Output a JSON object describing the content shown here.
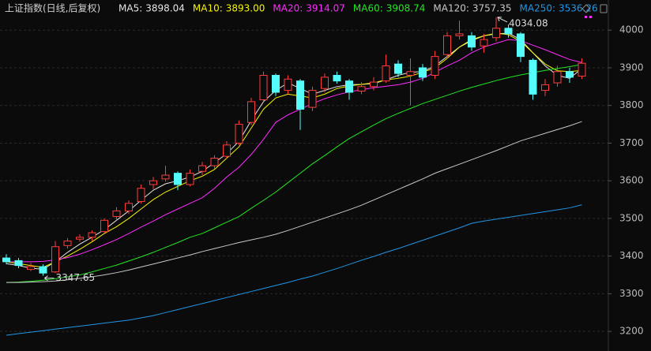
{
  "chart_data": {
    "type": "candlestick",
    "title": "上证指数(日线,后复权)",
    "open": [
      3395,
      3388,
      3365,
      3372,
      3358,
      3428,
      3445,
      3450,
      3465,
      3505,
      3520,
      3545,
      3590,
      3605,
      3620,
      3590,
      3625,
      3640,
      3665,
      3700,
      3755,
      3815,
      3880,
      3840,
      3865,
      3795,
      3845,
      3880,
      3865,
      3838,
      3850,
      3865,
      3910,
      3880,
      3900,
      3880,
      3935,
      3985,
      3985,
      3958,
      3980,
      4005,
      3990,
      3920,
      3840,
      3860,
      3890,
      3878
    ],
    "high": [
      3405,
      3395,
      3382,
      3378,
      3440,
      3448,
      3458,
      3468,
      3500,
      3530,
      3548,
      3590,
      3610,
      3640,
      3625,
      3630,
      3650,
      3668,
      3705,
      3760,
      3820,
      3890,
      3885,
      3880,
      3870,
      3850,
      3885,
      3890,
      3870,
      3862,
      3875,
      3935,
      3920,
      3925,
      3910,
      3945,
      3995,
      4025,
      3995,
      3990,
      4034.08,
      4015,
      3995,
      3925,
      3870,
      3905,
      3900,
      3925
    ],
    "low": [
      3378,
      3368,
      3360,
      3347.65,
      3355,
      3420,
      3438,
      3440,
      3460,
      3495,
      3512,
      3540,
      3578,
      3598,
      3575,
      3585,
      3615,
      3632,
      3658,
      3695,
      3748,
      3810,
      3825,
      3830,
      3735,
      3785,
      3835,
      3858,
      3815,
      3830,
      3840,
      3860,
      3875,
      3800,
      3865,
      3870,
      3925,
      3975,
      3945,
      3940,
      3970,
      3980,
      3915,
      3815,
      3825,
      3850,
      3860,
      3870
    ],
    "close": [
      3385,
      3375,
      3372,
      3355,
      3425,
      3440,
      3450,
      3462,
      3495,
      3520,
      3540,
      3580,
      3600,
      3615,
      3590,
      3620,
      3640,
      3660,
      3695,
      3750,
      3810,
      3880,
      3835,
      3870,
      3790,
      3840,
      3875,
      3865,
      3835,
      3850,
      3862,
      3905,
      3885,
      3890,
      3875,
      3930,
      3985,
      3990,
      3955,
      3975,
      4005,
      3990,
      3930,
      3830,
      3855,
      3890,
      3875,
      3912
    ],
    "up_color": "#ff3c3c",
    "down_color": "#54fcfc",
    "low_mark": 3,
    "high_mark": 40,
    "series": [
      {
        "name": "MA5:",
        "color": "#e6e6e6",
        "latest": 3898.04,
        "values": [
          3380,
          3375,
          3368,
          3365,
          3385,
          3410,
          3432,
          3450,
          3470,
          3495,
          3520,
          3548,
          3575,
          3592,
          3600,
          3610,
          3625,
          3648,
          3672,
          3705,
          3760,
          3810,
          3840,
          3860,
          3845,
          3830,
          3840,
          3850,
          3855,
          3856,
          3858,
          3868,
          3880,
          3888,
          3890,
          3905,
          3930,
          3955,
          3972,
          3985,
          3990,
          3992,
          3975,
          3940,
          3905,
          3880,
          3872,
          3898.04
        ]
      },
      {
        "name": "MA10:",
        "color": "#f5f500",
        "latest": {
          "value": 3893,
          "label": "3893.00"
        },
        "values": [
          3385,
          3380,
          3375,
          3370,
          3385,
          3400,
          3418,
          3438,
          3460,
          3478,
          3500,
          3525,
          3550,
          3570,
          3585,
          3600,
          3612,
          3630,
          3660,
          3690,
          3740,
          3790,
          3820,
          3830,
          3825,
          3820,
          3830,
          3845,
          3852,
          3856,
          3860,
          3868,
          3872,
          3878,
          3888,
          3900,
          3925,
          3955,
          3975,
          3985,
          3992,
          3988,
          3970,
          3940,
          3910,
          3892,
          3890,
          3893
        ]
      },
      {
        "name": "MA20:",
        "color": "#ff2cff",
        "latest": 3914.07,
        "values": [
          3385,
          3385,
          3385,
          3386,
          3390,
          3396,
          3405,
          3417,
          3430,
          3444,
          3460,
          3477,
          3493,
          3510,
          3525,
          3540,
          3555,
          3580,
          3610,
          3636,
          3670,
          3710,
          3755,
          3775,
          3790,
          3805,
          3818,
          3828,
          3836,
          3842,
          3847,
          3851,
          3855,
          3862,
          3872,
          3888,
          3905,
          3920,
          3940,
          3955,
          3965,
          3975,
          3972,
          3960,
          3948,
          3935,
          3922,
          3914.07
        ]
      },
      {
        "name": "MA60:",
        "color": "#22e622",
        "latest": 3908.74,
        "values": [
          3330,
          3331,
          3333,
          3336,
          3340,
          3345,
          3350,
          3358,
          3367,
          3376,
          3387,
          3398,
          3410,
          3423,
          3436,
          3450,
          3460,
          3475,
          3490,
          3505,
          3527,
          3548,
          3570,
          3595,
          3620,
          3645,
          3667,
          3690,
          3712,
          3730,
          3748,
          3765,
          3779,
          3792,
          3805,
          3816,
          3827,
          3838,
          3848,
          3857,
          3866,
          3874,
          3881,
          3887,
          3893,
          3898,
          3903,
          3908.74
        ]
      },
      {
        "name": "MA120:",
        "color": "#c8c8c8",
        "latest": 3757.35,
        "values": [
          3330,
          3330,
          3331,
          3332,
          3334,
          3337,
          3341,
          3345,
          3350,
          3356,
          3363,
          3371,
          3379,
          3387,
          3395,
          3403,
          3412,
          3420,
          3428,
          3436,
          3443,
          3450,
          3458,
          3468,
          3479,
          3490,
          3501,
          3512,
          3523,
          3535,
          3549,
          3563,
          3577,
          3591,
          3605,
          3620,
          3632,
          3644,
          3656,
          3668,
          3680,
          3693,
          3706,
          3716,
          3726,
          3736,
          3746,
          3757.35
        ]
      },
      {
        "name": "MA250:",
        "color": "#2196e6",
        "latest": 3536.26,
        "values": [
          3190,
          3194,
          3198,
          3202,
          3206,
          3210,
          3214,
          3218,
          3222,
          3226,
          3230,
          3236,
          3242,
          3250,
          3258,
          3266,
          3274,
          3282,
          3290,
          3298,
          3306,
          3314,
          3322,
          3330,
          3339,
          3347,
          3357,
          3367,
          3378,
          3389,
          3399,
          3410,
          3420,
          3431,
          3442,
          3453,
          3464,
          3475,
          3487,
          3493,
          3498,
          3503,
          3508,
          3513,
          3518,
          3523,
          3528,
          3536.26
        ]
      }
    ],
    "ylim": [
      3148,
      4080
    ],
    "yticks": [
      3200,
      3300,
      3400,
      3500,
      3600,
      3700,
      3800,
      3900,
      4000
    ],
    "grid": true
  }
}
